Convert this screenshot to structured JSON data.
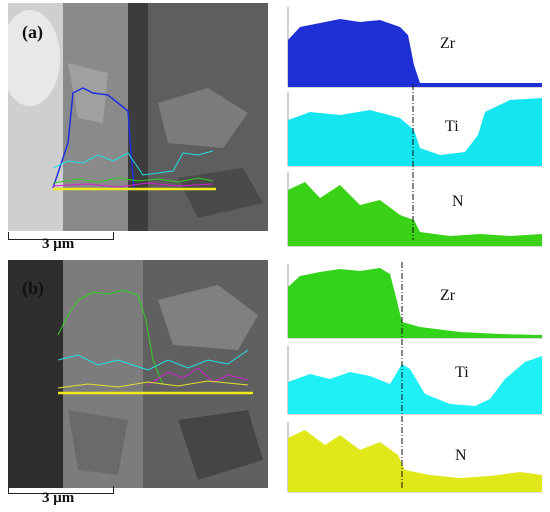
{
  "panels": [
    {
      "label": "(a)",
      "scale_bar": "3 μm",
      "profiles": [
        {
          "element": "Zr",
          "color": "#1f2fd6"
        },
        {
          "element": "Ti",
          "color": "#14e6f0"
        },
        {
          "element": "N",
          "color": "#3ad217"
        }
      ]
    },
    {
      "label": "(b)",
      "scale_bar": "3 μm",
      "profiles": [
        {
          "element": "Zr",
          "color": "#33d21b"
        },
        {
          "element": "Ti",
          "color": "#1ff0f5"
        },
        {
          "element": "N",
          "color": "#e0e81a"
        }
      ]
    }
  ],
  "colors": {
    "sem_background": "#6f6f6f",
    "scan_line": "#f2ea1a",
    "interface_marker": "#111111"
  }
}
